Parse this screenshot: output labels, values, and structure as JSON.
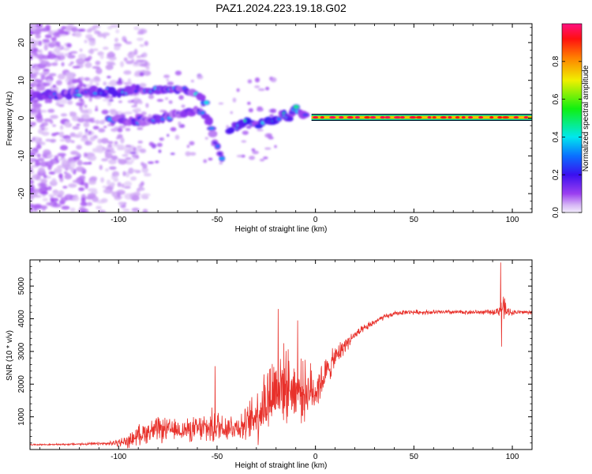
{
  "figure": {
    "title": "PAZ1.2024.223.19.18.G02"
  },
  "chart_data": [
    {
      "type": "heatmap",
      "xlabel": "Height of straight line (km)",
      "ylabel": "Frequency (Hz)",
      "xlim": [
        -145,
        110
      ],
      "ylim": [
        -25,
        25
      ],
      "xticks": [
        -100,
        -50,
        0,
        50,
        100
      ],
      "yticks": [
        -20,
        -10,
        0,
        10,
        20
      ],
      "colorbar": {
        "label": "Normalized spectral amplitude",
        "range": [
          0,
          1
        ],
        "ticks": [
          0.0,
          0.2,
          0.4,
          0.6,
          0.8
        ],
        "colormap": "rainbow (violet-blue-cyan-green-yellow-red-magenta)"
      },
      "ridges": [
        {
          "name": "",
          "points": [
            [
              -145,
              6
            ],
            [
              -130,
              6
            ],
            [
              -115,
              7
            ],
            [
              -100,
              7
            ],
            [
              -90,
              7.5
            ],
            [
              -80,
              7.5
            ],
            [
              -70,
              8
            ],
            [
              -64,
              7
            ],
            [
              -58,
              5
            ],
            [
              -54,
              3
            ]
          ],
          "amplitude": 0.25
        },
        {
          "name": "",
          "points": [
            [
              -105,
              0
            ],
            [
              -96,
              -1
            ],
            [
              -88,
              -0.5
            ],
            [
              -80,
              0
            ],
            [
              -70,
              1
            ],
            [
              -62,
              2
            ],
            [
              -57,
              1
            ],
            [
              -54,
              -1
            ],
            [
              -52,
              -4
            ],
            [
              -50,
              -8
            ],
            [
              -46,
              -12
            ]
          ],
          "amplitude": 0.2
        },
        {
          "name": "",
          "points": [
            [
              -44,
              -3
            ],
            [
              -40,
              -2
            ],
            [
              -35,
              -1
            ],
            [
              -30,
              -2
            ],
            [
              -25,
              -1
            ],
            [
              -20,
              0
            ],
            [
              -16,
              1
            ],
            [
              -13,
              0
            ],
            [
              -10,
              3
            ],
            [
              -7,
              1
            ],
            [
              -4,
              0
            ]
          ],
          "amplitude": 0.3
        },
        {
          "name": "",
          "points": [
            [
              -2,
              0
            ],
            [
              10,
              0.2
            ],
            [
              30,
              0.2
            ],
            [
              50,
              0.2
            ],
            [
              70,
              0.2
            ],
            [
              90,
              0.2
            ],
            [
              110,
              0.2
            ]
          ],
          "amplitude": 0.95
        }
      ]
    },
    {
      "type": "line",
      "xlabel": "Height of straight line (km)",
      "ylabel": "SNR (10 * v/v)",
      "xlim": [
        -145,
        110
      ],
      "ylim": [
        0,
        5800
      ],
      "xticks": [
        -100,
        -50,
        0,
        50,
        100
      ],
      "yticks": [
        1000,
        2000,
        3000,
        4000,
        5000
      ],
      "color": "#e8302a",
      "series": [
        {
          "name": "",
          "x": [
            -145,
            -135,
            -125,
            -115,
            -105,
            -95,
            -90,
            -85,
            -80,
            -75,
            -70,
            -65,
            -60,
            -55,
            -50,
            -45,
            -40,
            -35,
            -30,
            -25,
            -20,
            -15,
            -10,
            -5,
            0,
            5,
            10,
            15,
            20,
            25,
            30,
            35,
            40,
            45,
            50,
            55,
            60,
            65,
            70,
            75,
            80,
            85,
            90,
            93,
            95,
            97,
            100,
            105,
            110
          ],
          "y": [
            150,
            150,
            160,
            170,
            180,
            250,
            450,
            550,
            600,
            600,
            600,
            600,
            620,
            650,
            700,
            700,
            700,
            750,
            1100,
            1500,
            1900,
            2000,
            1800,
            1800,
            1800,
            2300,
            2800,
            3200,
            3500,
            3700,
            3900,
            4050,
            4150,
            4200,
            4200,
            4200,
            4200,
            4200,
            4200,
            4200,
            4200,
            4200,
            4200,
            4250,
            4400,
            4200,
            4200,
            4200,
            4200
          ],
          "noise": [
            20,
            20,
            30,
            40,
            50,
            200,
            300,
            350,
            400,
            350,
            300,
            350,
            400,
            500,
            550,
            450,
            400,
            500,
            900,
            1200,
            1300,
            1100,
            900,
            900,
            700,
            500,
            350,
            250,
            150,
            120,
            100,
            80,
            70,
            70,
            70,
            70,
            70,
            70,
            70,
            70,
            70,
            70,
            80,
            150,
            500,
            200,
            80,
            70,
            70
          ],
          "peaks": [
            [
              -51,
              2550
            ],
            [
              -19,
              4300
            ],
            [
              -9,
              3950
            ],
            [
              94,
              5720
            ],
            [
              94.5,
              3150
            ]
          ]
        }
      ]
    }
  ]
}
